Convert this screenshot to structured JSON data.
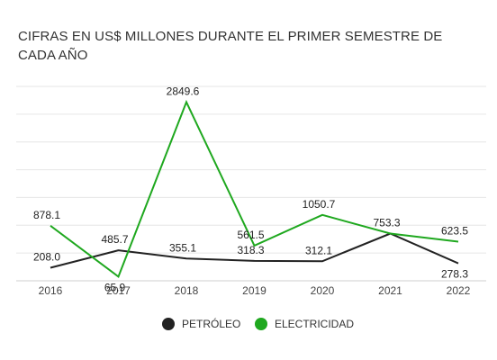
{
  "chart_data": {
    "type": "line",
    "title": "CIFRAS EN US$ MILLONES DURANTE EL PRIMER SEMESTRE DE CADA AÑO",
    "xlabel": "",
    "ylabel": "",
    "categories": [
      "2016",
      "2017",
      "2018",
      "2019",
      "2020",
      "2021",
      "2022"
    ],
    "series": [
      {
        "name": "PETRÓLEO",
        "color": "#222222",
        "values": [
          208.0,
          485.7,
          355.1,
          318.3,
          312.1,
          753.3,
          278.3
        ],
        "labels": [
          "208.0",
          "485.7",
          "355.1",
          "318.3",
          "312.1",
          "753.3",
          "278.3"
        ]
      },
      {
        "name": "ELECTRICIDAD",
        "color": "#1fa81f",
        "values": [
          878.1,
          65.9,
          2849.6,
          561.5,
          1050.7,
          753.3,
          623.5
        ],
        "labels": [
          "878.1",
          "65.9",
          "2849.6",
          "561.5",
          "1050.7",
          "",
          "623.5"
        ]
      }
    ],
    "ylim": [
      0,
      3100
    ],
    "grid": true,
    "legend_position": "bottom"
  }
}
